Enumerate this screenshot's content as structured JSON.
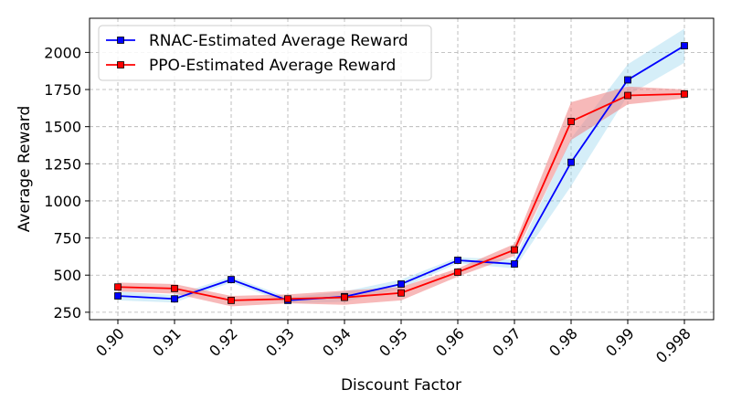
{
  "chart_data": {
    "type": "line",
    "title": "",
    "xlabel": "Discount Factor",
    "ylabel": "Average Reward",
    "categories": [
      "0.90",
      "0.91",
      "0.92",
      "0.93",
      "0.94",
      "0.95",
      "0.96",
      "0.97",
      "0.98",
      "0.99",
      "0.998"
    ],
    "ylim": [
      200,
      2230
    ],
    "yticks": [
      250,
      500,
      750,
      1000,
      1250,
      1500,
      1750,
      2000
    ],
    "ytick_labels": [
      "250",
      "500",
      "750",
      "1000",
      "1250",
      "1500",
      "1750",
      "2000"
    ],
    "grid": true,
    "legend": "top-left",
    "series": [
      {
        "name": "RNAC-Estimated Average Reward",
        "color": "#0000ff",
        "band_color": "#87ceeb",
        "marker": "square",
        "values": [
          360,
          340,
          470,
          330,
          355,
          440,
          600,
          575,
          1260,
          1815,
          2045
        ],
        "lower": [
          330,
          315,
          450,
          310,
          320,
          410,
          580,
          545,
          1100,
          1710,
          1930
        ],
        "upper": [
          390,
          365,
          490,
          350,
          390,
          470,
          620,
          605,
          1420,
          1920,
          2160
        ]
      },
      {
        "name": "PPO-Estimated Average Reward",
        "color": "#ff0000",
        "band_color": "#f08080",
        "marker": "square",
        "values": [
          420,
          410,
          330,
          340,
          350,
          380,
          520,
          670,
          1535,
          1710,
          1720
        ],
        "lower": [
          390,
          375,
          290,
          310,
          300,
          330,
          490,
          630,
          1410,
          1650,
          1690
        ],
        "upper": [
          450,
          440,
          360,
          370,
          395,
          420,
          545,
          710,
          1665,
          1770,
          1750
        ]
      }
    ]
  }
}
